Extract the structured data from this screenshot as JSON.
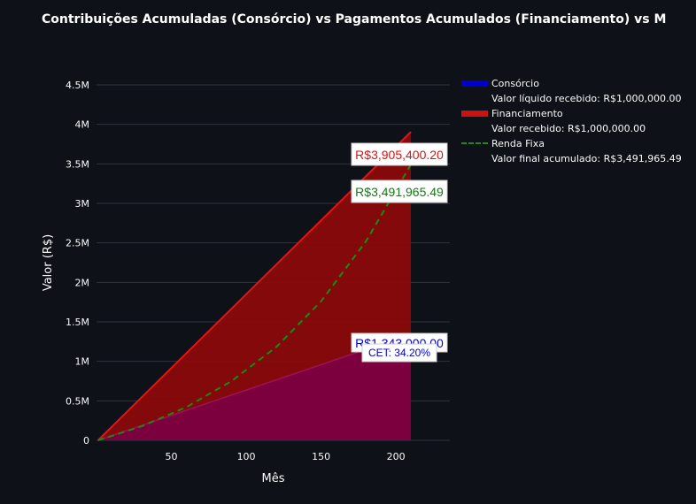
{
  "title": "Contribuições Acumuladas (Consórcio) vs Pagamentos Acumulados (Financiamento) vs Montante Acumulado (Renda Fixa)",
  "colors": {
    "background": "#0e1117",
    "consorcio": "#0000cc",
    "financiamento": "#cc1111",
    "renda_fixa": "#1a8a1a",
    "grid": "#2e323c"
  },
  "chart_data": {
    "type": "area",
    "xlabel": "Mês",
    "ylabel": "Valor (R$)",
    "xlim": [
      0,
      236
    ],
    "ylim": [
      0,
      4500000
    ],
    "x_ticks": [
      50,
      100,
      150,
      200
    ],
    "x_tick_labels": [
      "50",
      "100",
      "150",
      "200"
    ],
    "y_ticks": [
      0,
      500000,
      1000000,
      1500000,
      2000000,
      2500000,
      3000000,
      3500000,
      4000000,
      4500000
    ],
    "y_tick_labels": [
      "0",
      "0.5M",
      "1M",
      "1.5M",
      "2M",
      "2.5M",
      "3M",
      "3.5M",
      "4M",
      "4.5M"
    ],
    "grid": true,
    "legend_position": "right",
    "series": [
      {
        "name": "Consórcio",
        "legend_sub": "Valor líquido recebido: R$1,000,000.00",
        "style": "area",
        "color": "#0000cc",
        "x": [
          1,
          210
        ],
        "values": [
          0,
          1343000
        ],
        "annotation": "R$1,343,000.00",
        "annotation_extra": "CET: 34.20%"
      },
      {
        "name": "Financiamento",
        "legend_sub": "Valor recebido: R$1,000,000.00",
        "style": "area",
        "color": "#cc1111",
        "x": [
          1,
          210
        ],
        "values": [
          0,
          3905400.2
        ],
        "annotation": "R$3,905,400.20"
      },
      {
        "name": "Renda Fixa",
        "legend_sub": "Valor final acumulado: R$3,491,965.49",
        "style": "dash",
        "color": "#1a8a1a",
        "x": [
          1,
          30,
          60,
          90,
          120,
          150,
          180,
          210
        ],
        "values": [
          0,
          177000,
          420000,
          748000,
          1180000,
          1760000,
          2520000,
          3491965.49
        ],
        "annotation": "R$3,491,965.49"
      }
    ]
  }
}
